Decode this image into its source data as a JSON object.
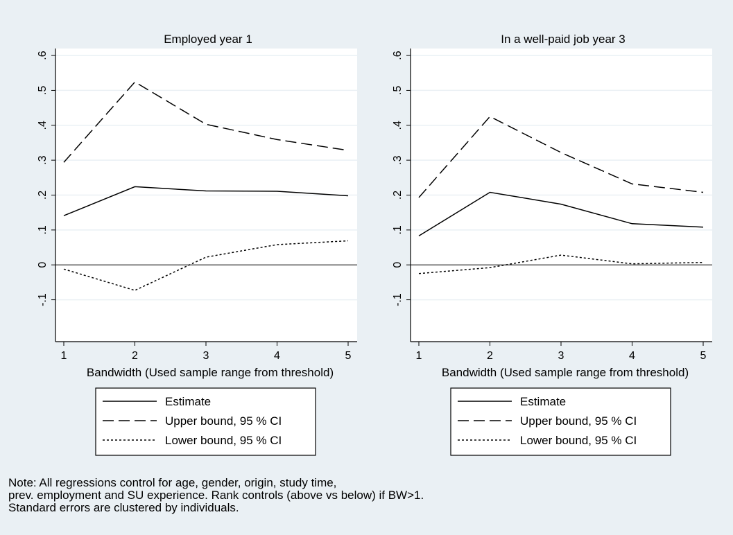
{
  "chart_data": [
    {
      "type": "line",
      "title": "Employed year 1",
      "xlabel": "Bandwidth (Used sample range from threshold)",
      "ylabel": "",
      "x": [
        1,
        2,
        3,
        4,
        5
      ],
      "xticks": [
        "1",
        "2",
        "3",
        "4",
        "5"
      ],
      "yticks": [
        "-.1",
        "0",
        ".1",
        ".2",
        ".3",
        ".4",
        ".5",
        ".6"
      ],
      "ylim": [
        -0.22,
        0.62
      ],
      "xlim": [
        1,
        5
      ],
      "grid": true,
      "reference_line": 0,
      "series": [
        {
          "name": "Estimate",
          "style": "solid",
          "values": [
            0.141,
            0.224,
            0.212,
            0.211,
            0.198
          ]
        },
        {
          "name": "Upper bound, 95 % CI",
          "style": "dashed",
          "values": [
            0.294,
            0.524,
            0.403,
            0.359,
            0.328
          ]
        },
        {
          "name": "Lower bound, 95 % CI",
          "style": "dotted",
          "values": [
            -0.012,
            -0.073,
            0.022,
            0.058,
            0.069
          ]
        }
      ]
    },
    {
      "type": "line",
      "title": "In a well-paid job year 3",
      "xlabel": "Bandwidth (Used sample range from threshold)",
      "ylabel": "",
      "x": [
        1,
        2,
        3,
        4,
        5
      ],
      "xticks": [
        "1",
        "2",
        "3",
        "4",
        "5"
      ],
      "yticks": [
        "-.1",
        "0",
        ".1",
        ".2",
        ".3",
        ".4",
        ".5",
        ".6"
      ],
      "ylim": [
        -0.22,
        0.62
      ],
      "xlim": [
        1,
        5
      ],
      "grid": true,
      "reference_line": 0,
      "series": [
        {
          "name": "Estimate",
          "style": "solid",
          "values": [
            0.083,
            0.208,
            0.174,
            0.118,
            0.108
          ]
        },
        {
          "name": "Upper bound, 95 % CI",
          "style": "dashed",
          "values": [
            0.193,
            0.425,
            0.322,
            0.232,
            0.208
          ]
        },
        {
          "name": "Lower bound, 95 % CI",
          "style": "dotted",
          "values": [
            -0.025,
            -0.008,
            0.028,
            0.003,
            0.007
          ]
        }
      ]
    }
  ],
  "note": [
    "Note: All regressions control for age, gender, origin, study time,",
    "prev. employment and SU experience. Rank controls (above vs below) if BW>1.",
    "Standard errors are clustered by individuals."
  ],
  "colors": {
    "background": "#eaf0f4",
    "plot_area": "#ffffff",
    "grid": "#eaf0f4",
    "line": "#000000"
  }
}
